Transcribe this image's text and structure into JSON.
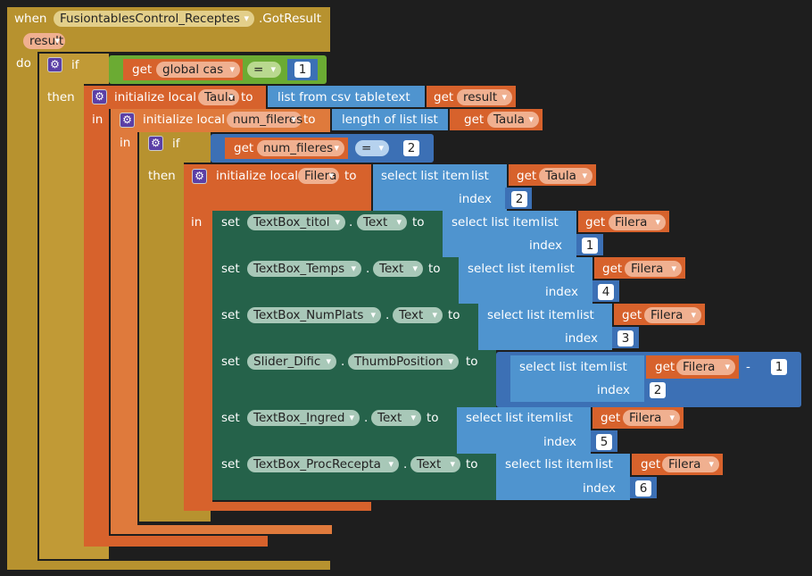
{
  "event": {
    "when": "when",
    "component": "FusiontablesControl_Receptes",
    "method": ".GotResult",
    "param": "result",
    "do": "do"
  },
  "if1": {
    "if": "if",
    "then": "then",
    "get": "get",
    "var": "global cas",
    "op": "=",
    "value": "1"
  },
  "init1": {
    "label": "initialize local",
    "name": "Taula",
    "to": "to",
    "in": "in",
    "csv": "list from csv table",
    "csv_arg": "text",
    "get": "get",
    "get_var": "result"
  },
  "init2": {
    "label": "initialize local",
    "name": "num_fileres",
    "to": "to",
    "in": "in",
    "len": "length of list",
    "len_arg": "list",
    "get": "get",
    "get_var": "Taula"
  },
  "if2": {
    "if": "if",
    "then": "then",
    "get": "get",
    "var": "num_fileres",
    "op": "=",
    "value": "2"
  },
  "init3": {
    "label": "initialize local",
    "name": "Filera",
    "to": "to",
    "in": "in",
    "sel": "select list item",
    "list": "list",
    "get": "get",
    "get_var": "Taula",
    "index": "index",
    "index_value": "2"
  },
  "sets": [
    {
      "set": "set",
      "comp": "TextBox_titol",
      "dot": ".",
      "prop": "Text",
      "to": "to",
      "sel": "select list item",
      "list": "list",
      "get": "get",
      "var": "Filera",
      "index": "index",
      "value": "1"
    },
    {
      "set": "set",
      "comp": "TextBox_Temps",
      "dot": ".",
      "prop": "Text",
      "to": "to",
      "sel": "select list item",
      "list": "list",
      "get": "get",
      "var": "Filera",
      "index": "index",
      "value": "4"
    },
    {
      "set": "set",
      "comp": "TextBox_NumPlats",
      "dot": ".",
      "prop": "Text",
      "to": "to",
      "sel": "select list item",
      "list": "list",
      "get": "get",
      "var": "Filera",
      "index": "index",
      "value": "3"
    },
    {
      "set": "set",
      "comp": "Slider_Dific",
      "dot": ".",
      "prop": "ThumbPosition",
      "to": "to",
      "sel": "select list item",
      "list": "list",
      "get": "get",
      "var": "Filera",
      "index": "index",
      "value": "2",
      "minus": "-",
      "minus_value": "1"
    },
    {
      "set": "set",
      "comp": "TextBox_Ingred",
      "dot": ".",
      "prop": "Text",
      "to": "to",
      "sel": "select list item",
      "list": "list",
      "get": "get",
      "var": "Filera",
      "index": "index",
      "value": "5"
    },
    {
      "set": "set",
      "comp": "TextBox_ProcRecepta",
      "dot": ".",
      "prop": "Text",
      "to": "to",
      "sel": "select list item",
      "list": "list",
      "get": "get",
      "var": "Filera",
      "index": "index",
      "value": "6"
    }
  ],
  "icons": {
    "mutator": "gear-icon",
    "dropdown": "chevron-down-icon"
  },
  "colors": {
    "background": "#1e1e1e",
    "control": "#b7922f",
    "variable": "#d7622c",
    "list": "#4f94cf",
    "math": "#3c70b5",
    "setter": "#25624a",
    "logic": "#6bab33"
  }
}
